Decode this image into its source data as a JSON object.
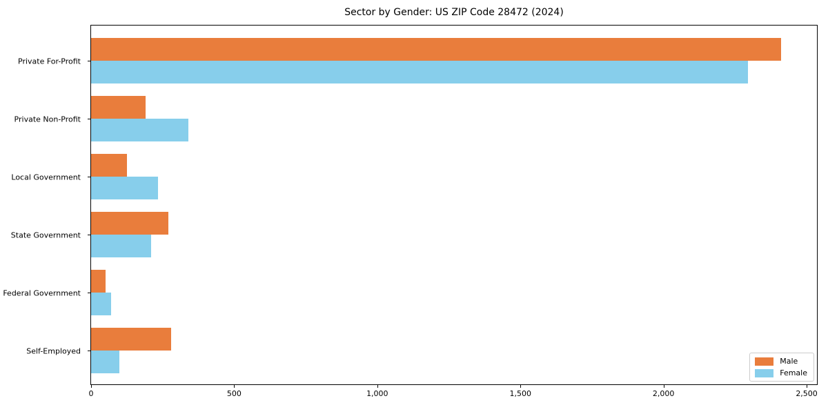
{
  "chart_data": {
    "type": "bar",
    "orientation": "horizontal",
    "title": "Sector by Gender: US ZIP Code 28472 (2024)",
    "categories": [
      "Private For-Profit",
      "Private Non-Profit",
      "Local Government",
      "State Government",
      "Federal Government",
      "Self-Employed"
    ],
    "series": [
      {
        "name": "Male",
        "color": "#e97d3c",
        "values": [
          2410,
          190,
          125,
          270,
          50,
          280
        ]
      },
      {
        "name": "Female",
        "color": "#87ceeb",
        "values": [
          2295,
          340,
          235,
          210,
          70,
          100
        ]
      }
    ],
    "xlabel": "",
    "ylabel": "",
    "xlim": [
      0,
      2536
    ],
    "xticks": {
      "values": [
        0,
        500,
        1000,
        1500,
        2000,
        2500
      ],
      "labels": [
        "0",
        "500",
        "1,000",
        "1,500",
        "2,000",
        "2,500"
      ]
    },
    "legend_position": "lower right",
    "grid": false,
    "background_color": "#ffffff",
    "spine_color": "#000000"
  }
}
